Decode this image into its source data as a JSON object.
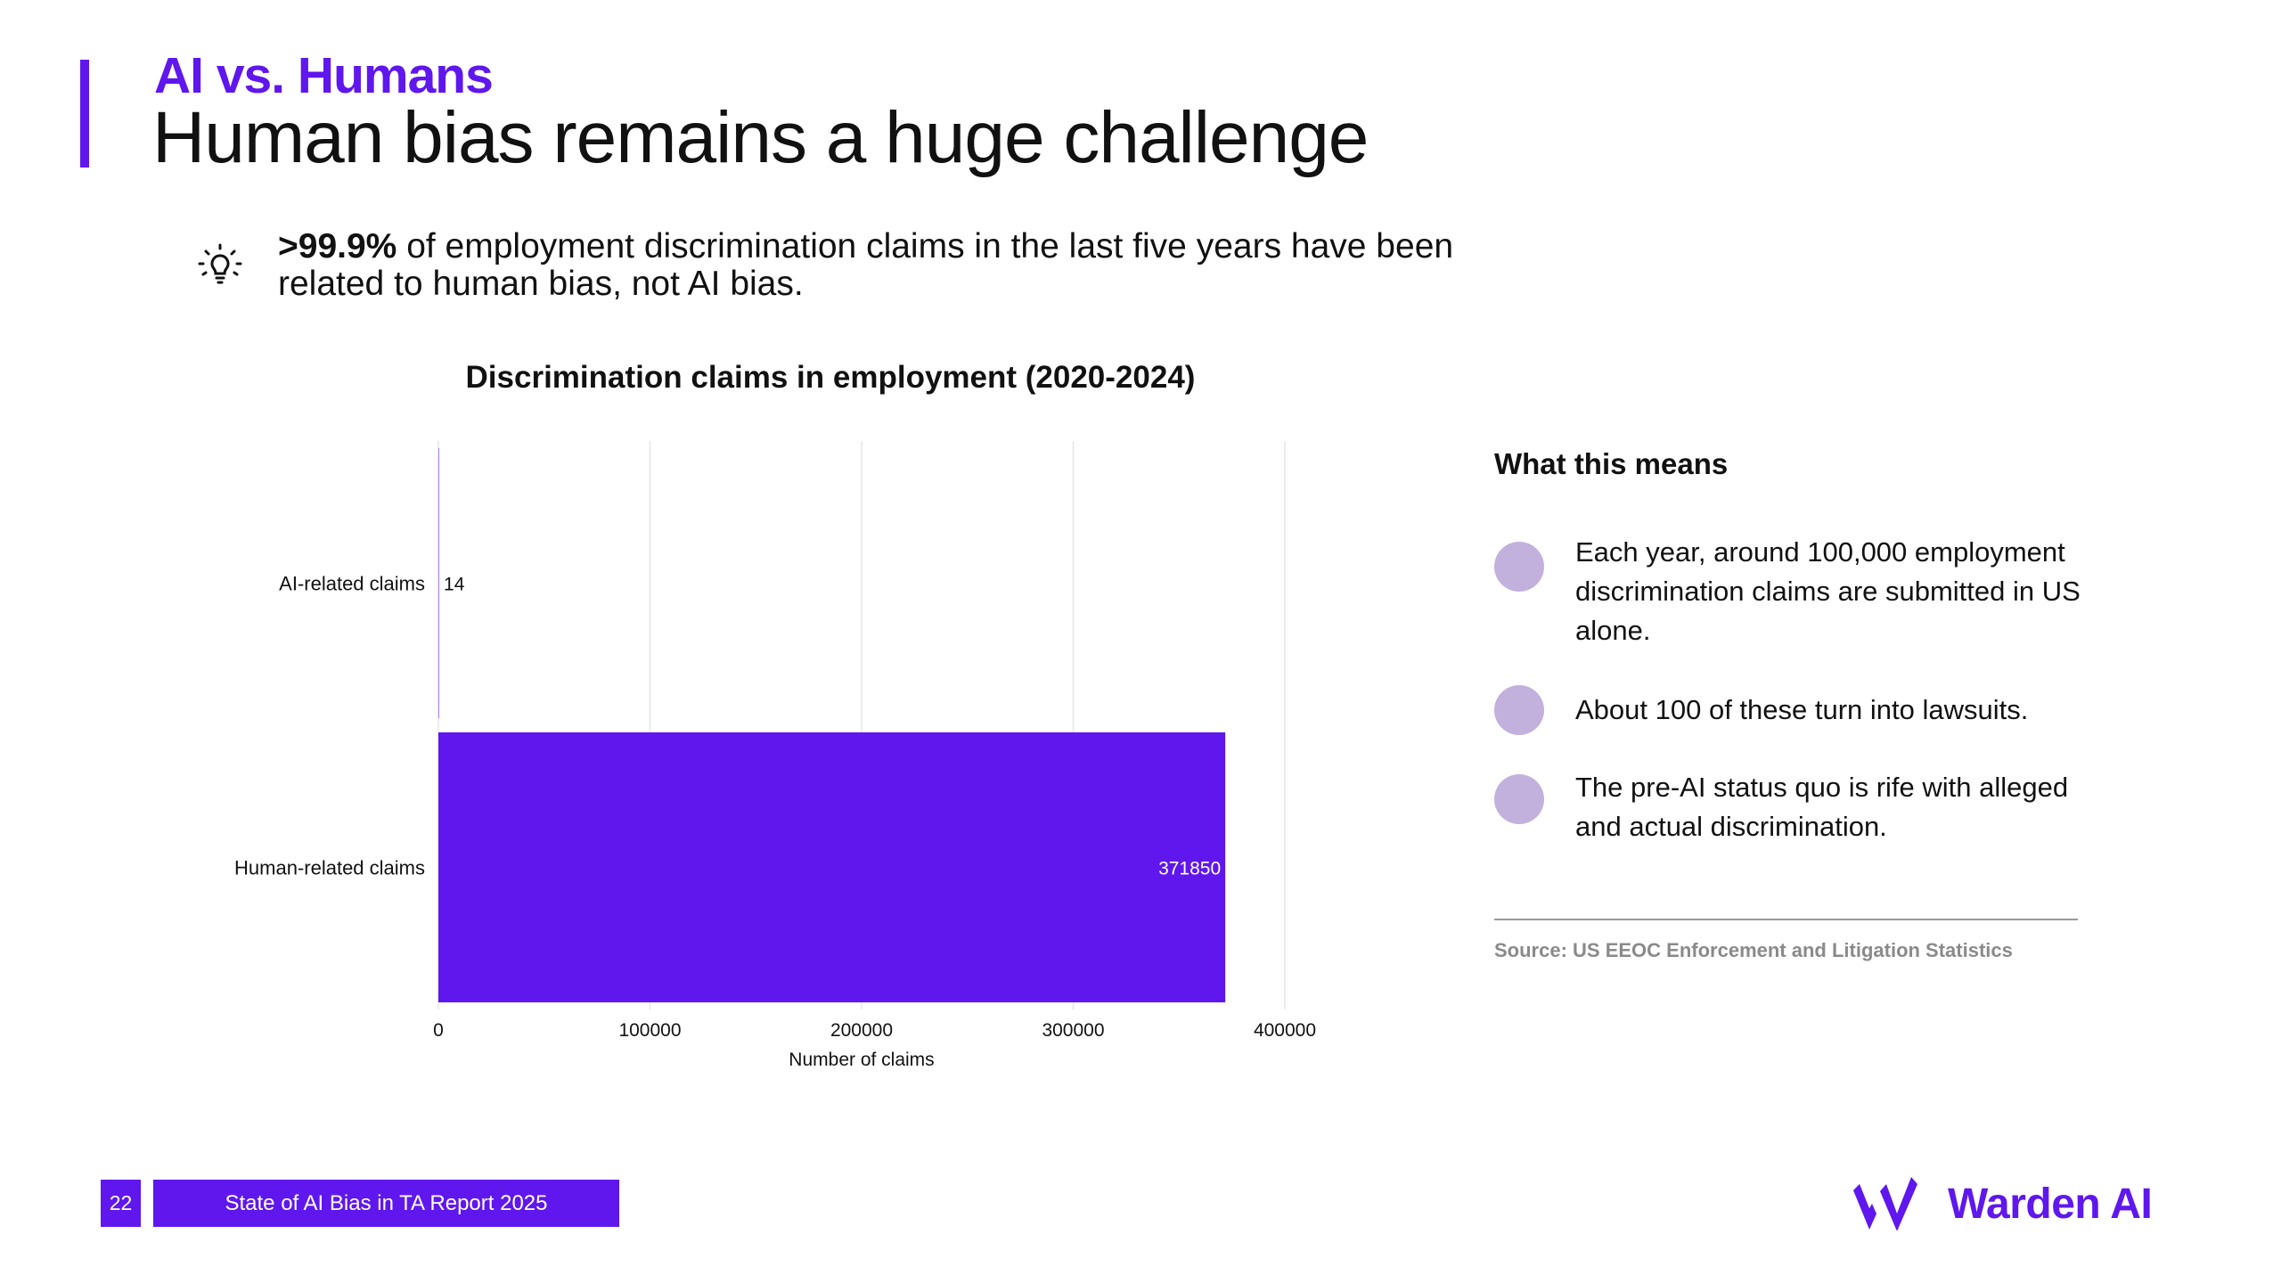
{
  "header": {
    "kicker": "AI vs. Humans",
    "title": "Human bias remains a huge challenge"
  },
  "highlight": {
    "icon": "lightbulb-icon",
    "stat": ">99.9%",
    "text": " of employment discrimination claims in the last five years have been related to human bias, not AI bias."
  },
  "chart_data": {
    "type": "bar",
    "orientation": "horizontal",
    "title": "Discrimination claims in employment (2020-2024)",
    "categories": [
      "AI-related claims",
      "Human-related claims"
    ],
    "values": [
      14,
      371850
    ],
    "data_labels": [
      "14",
      "371850"
    ],
    "xlabel": "Number of claims",
    "ylabel": "",
    "xlim": [
      0,
      400000
    ],
    "xticks": [
      "0",
      "100000",
      "200000",
      "300000",
      "400000"
    ],
    "grid": "vertical",
    "bar_color": "#5f17ed"
  },
  "panel": {
    "title": "What this means",
    "items": [
      {
        "text": "Each year, around 100,000 employment discrimination claims are submitted in US alone."
      },
      {
        "text": "About 100 of these turn into lawsuits."
      },
      {
        "text": "The pre-AI status quo is rife with alleged and actual discrimination."
      }
    ],
    "source": "Source: US EEOC Enforcement and Litigation Statistics"
  },
  "footer": {
    "page_number": "22",
    "report_label": "State of AI Bias in TA Report 2025",
    "logo_text": "Warden AI"
  },
  "colors": {
    "accent": "#5f17ed",
    "bullet": "#c2b0dd"
  }
}
